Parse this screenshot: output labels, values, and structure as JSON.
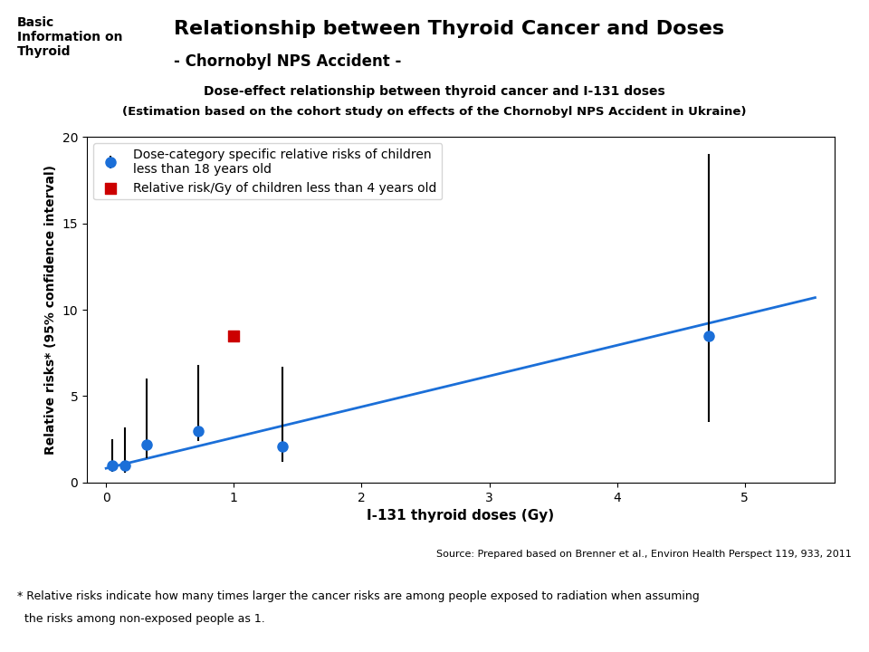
{
  "chart_data": {
    "type": "scatter",
    "title": "Relationship between Thyroid Cancer and Doses",
    "subtitle": "- Chornobyl NPS Accident -",
    "annotations": [
      "Basic\nInformation on\nThyroid",
      "Dose-effect relationship between thyroid cancer and I-131 doses",
      "(Estimation based on the cohort study on effects of the Chornobyl NPS Accident in Ukraine)",
      "Source: Prepared based on Brenner et al., Environ Health Perspect 119, 933, 2011",
      "* Relative risks indicate how many times larger the cancer risks are among people exposed to radiation when assuming",
      "  the risks among non-exposed people as 1."
    ],
    "xlabel": "I-131 thyroid doses (Gy)",
    "ylabel": "Relative risks* (95% confidence interval)",
    "series": [
      {
        "name": "Dose-category specific relative risks of children\nless than 18 years old",
        "type": "scatter",
        "marker": "circle",
        "color": "#1B6FD8",
        "x": [
          0.05,
          0.15,
          0.32,
          0.72,
          1.38,
          4.72
        ],
        "values": [
          1.0,
          1.0,
          2.2,
          3.0,
          2.1,
          8.5
        ],
        "error_low": [
          0.4,
          0.45,
          0.8,
          0.6,
          0.9,
          5.0
        ],
        "error_high": [
          1.5,
          2.2,
          3.8,
          3.8,
          4.6,
          10.5
        ]
      },
      {
        "name": "Relative risk/Gy of children less than 4 years old",
        "type": "scatter",
        "marker": "square",
        "color": "#CC0000",
        "x": [
          1.0
        ],
        "values": [
          8.5
        ]
      },
      {
        "type": "line",
        "line_style": "solid",
        "color": "#1B6FD8",
        "x": [
          0.0,
          5.55
        ],
        "values": [
          0.82,
          10.7
        ]
      }
    ],
    "xlim": [
      -0.15,
      5.7
    ],
    "ylim": [
      0,
      20
    ],
    "xticks": [
      0,
      1,
      2,
      3,
      4,
      5
    ],
    "yticks": [
      0,
      5,
      10,
      15,
      20
    ],
    "legend": "upper left"
  }
}
